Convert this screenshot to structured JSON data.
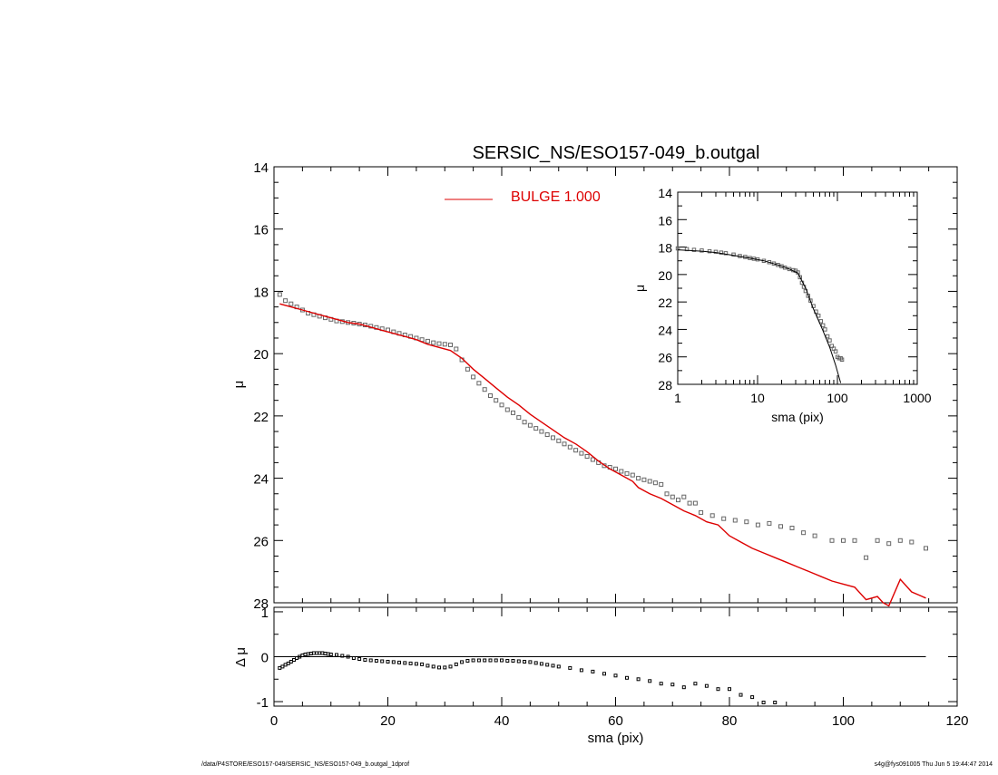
{
  "footer": {
    "left": "/data/P4STORE/ESO157-049/SERSIC_NS/ESO157-049_b.outgal_1dprof",
    "right": "s4g@fys091005  Thu Jun  5 19:44:47 2014"
  },
  "colors": {
    "model": "#dd0000",
    "data": "#666666",
    "axis": "#000000"
  },
  "chart_data": [
    {
      "id": "main",
      "type": "scatter",
      "title": "SERSIC_NS/ESO157-049_b.outgal",
      "xlabel": "",
      "ylabel": "μ",
      "xlim": [
        0,
        120
      ],
      "ylim": [
        28,
        14
      ],
      "yinverted": true,
      "xticks": [
        0,
        20,
        40,
        60,
        80,
        100,
        120
      ],
      "yticks": [
        14,
        16,
        18,
        20,
        22,
        24,
        26,
        28
      ],
      "legend": {
        "label": "BULGE  1.000",
        "placement": "top-center"
      },
      "series": [
        {
          "name": "BULGE  1.000",
          "kind": "line",
          "color": "#dd0000",
          "x": [
            1,
            3,
            5,
            7,
            9,
            11,
            13,
            15,
            17,
            19,
            21,
            23,
            25,
            27,
            29,
            31,
            33,
            35,
            37,
            39,
            41,
            43,
            45,
            47,
            49,
            51,
            53,
            55,
            57,
            59,
            61,
            63,
            64,
            66,
            68,
            70,
            72,
            74,
            76,
            78,
            80,
            82,
            84,
            86,
            88,
            90,
            92,
            94,
            96,
            98,
            100,
            102,
            104,
            106,
            107,
            108,
            110,
            112,
            114.5
          ],
          "y": [
            18.4,
            18.5,
            18.6,
            18.7,
            18.8,
            18.9,
            19.0,
            19.05,
            19.15,
            19.25,
            19.35,
            19.45,
            19.55,
            19.7,
            19.8,
            19.9,
            20.15,
            20.5,
            20.8,
            21.1,
            21.4,
            21.65,
            21.95,
            22.2,
            22.45,
            22.7,
            22.9,
            23.15,
            23.45,
            23.7,
            23.9,
            24.1,
            24.3,
            24.5,
            24.65,
            24.85,
            25.05,
            25.2,
            25.4,
            25.5,
            25.85,
            26.05,
            26.25,
            26.4,
            26.55,
            26.7,
            26.85,
            27.0,
            27.15,
            27.3,
            27.4,
            27.5,
            27.9,
            27.8,
            28.0,
            28.1,
            27.25,
            27.65,
            27.85
          ]
        },
        {
          "name": "",
          "kind": "points",
          "color": "#666666",
          "x": [
            1,
            2,
            3,
            4,
            5,
            6,
            7,
            8,
            9,
            10,
            11,
            12,
            13,
            14,
            15,
            16,
            17,
            18,
            19,
            20,
            21,
            22,
            23,
            24,
            25,
            26,
            27,
            28,
            29,
            30,
            31,
            32,
            33,
            34,
            35,
            36,
            37,
            38,
            39,
            40,
            41,
            42,
            43,
            44,
            45,
            46,
            47,
            48,
            49,
            50,
            51,
            52,
            53,
            54,
            55,
            56,
            57,
            58,
            59,
            60,
            61,
            62,
            63,
            64,
            65,
            66,
            67,
            68,
            69,
            70,
            71,
            72,
            73,
            74,
            75,
            77,
            79,
            81,
            83,
            85,
            87,
            89,
            91,
            93,
            95,
            98,
            100,
            102,
            104,
            106,
            108,
            110,
            112,
            114.5
          ],
          "y": [
            18.1,
            18.3,
            18.4,
            18.5,
            18.6,
            18.7,
            18.75,
            18.8,
            18.85,
            18.9,
            18.95,
            18.97,
            19.0,
            19.02,
            19.05,
            19.08,
            19.12,
            19.16,
            19.2,
            19.24,
            19.3,
            19.35,
            19.4,
            19.45,
            19.5,
            19.55,
            19.6,
            19.65,
            19.68,
            19.7,
            19.72,
            19.85,
            20.2,
            20.5,
            20.75,
            20.95,
            21.15,
            21.35,
            21.5,
            21.65,
            21.8,
            21.9,
            22.05,
            22.2,
            22.3,
            22.4,
            22.5,
            22.6,
            22.7,
            22.8,
            22.9,
            23.0,
            23.1,
            23.2,
            23.3,
            23.4,
            23.5,
            23.6,
            23.65,
            23.7,
            23.78,
            23.85,
            23.9,
            24.0,
            24.05,
            24.1,
            24.15,
            24.2,
            24.5,
            24.6,
            24.7,
            24.6,
            24.8,
            24.8,
            25.1,
            25.2,
            25.3,
            25.35,
            25.4,
            25.5,
            25.45,
            25.55,
            25.6,
            25.75,
            25.85,
            26.0,
            26.0,
            26.0,
            26.55,
            26.0,
            26.1,
            26.0,
            26.05,
            26.25
          ]
        }
      ]
    },
    {
      "id": "inset",
      "type": "scatter",
      "title": "",
      "xlabel": "sma (pix)",
      "ylabel": "μ",
      "xscale": "log",
      "xlim": [
        1,
        1000
      ],
      "ylim": [
        28,
        14
      ],
      "yinverted": true,
      "xticks": [
        1,
        10,
        100,
        1000
      ],
      "yticks": [
        14,
        16,
        18,
        20,
        22,
        24,
        26,
        28
      ],
      "series": [
        {
          "name": "",
          "kind": "line",
          "color": "#000000",
          "x": [
            1,
            2,
            3,
            5,
            8,
            12,
            18,
            25,
            32,
            40,
            50,
            65,
            80,
            95,
            110
          ],
          "y": [
            18.2,
            18.3,
            18.4,
            18.6,
            18.8,
            19.0,
            19.3,
            19.6,
            19.9,
            21.0,
            22.5,
            24.0,
            25.3,
            26.6,
            27.9
          ]
        },
        {
          "name": "",
          "kind": "points",
          "color": "#666666",
          "x": [
            1,
            1.3,
            1.6,
            2,
            2.5,
            3,
            3.5,
            4,
            5,
            6,
            7,
            8,
            9,
            10,
            12,
            14,
            16,
            18,
            20,
            22,
            25,
            28,
            30,
            32,
            34,
            36,
            38,
            40,
            43,
            46,
            50,
            54,
            58,
            62,
            66,
            70,
            75,
            80,
            85,
            90,
            95,
            100,
            105,
            110,
            114
          ],
          "y": [
            18.1,
            18.15,
            18.2,
            18.25,
            18.3,
            18.35,
            18.4,
            18.45,
            18.55,
            18.65,
            18.72,
            18.8,
            18.85,
            18.9,
            19.0,
            19.1,
            19.2,
            19.3,
            19.4,
            19.5,
            19.6,
            19.68,
            19.72,
            19.85,
            20.2,
            20.6,
            20.9,
            21.2,
            21.55,
            21.9,
            22.3,
            22.7,
            23.0,
            23.4,
            23.7,
            24.0,
            24.5,
            24.8,
            25.2,
            25.4,
            25.6,
            26.0,
            26.1,
            26.1,
            26.2
          ]
        }
      ]
    },
    {
      "id": "residual",
      "type": "scatter",
      "title": "",
      "xlabel": "sma (pix)",
      "ylabel": "Δ μ",
      "xlim": [
        0,
        120
      ],
      "ylim": [
        -1.1,
        1.1
      ],
      "xticks": [
        0,
        20,
        40,
        60,
        80,
        100,
        120
      ],
      "yticks": [
        -1,
        0,
        1
      ],
      "zero_line": {
        "y": 0,
        "x_from": 1,
        "x_to": 114.5
      },
      "series": [
        {
          "name": "",
          "kind": "points",
          "color": "#000000",
          "x": [
            1,
            1.5,
            2,
            2.5,
            3,
            3.5,
            4,
            4.5,
            5,
            5.5,
            6,
            6.5,
            7,
            7.5,
            8,
            8.5,
            9,
            9.5,
            10,
            11,
            12,
            13,
            14,
            15,
            16,
            17,
            18,
            19,
            20,
            21,
            22,
            23,
            24,
            25,
            26,
            27,
            28,
            29,
            30,
            31,
            32,
            33,
            34,
            35,
            36,
            37,
            38,
            39,
            40,
            41,
            42,
            43,
            44,
            45,
            46,
            47,
            48,
            49,
            50,
            52,
            54,
            56,
            58,
            60,
            62,
            64,
            66,
            68,
            70,
            72,
            74,
            76,
            78,
            80,
            82,
            84,
            86,
            88
          ],
          "y": [
            -0.25,
            -0.22,
            -0.18,
            -0.15,
            -0.11,
            -0.07,
            -0.03,
            0.0,
            0.03,
            0.05,
            0.06,
            0.07,
            0.08,
            0.08,
            0.08,
            0.08,
            0.07,
            0.06,
            0.05,
            0.04,
            0.02,
            0.0,
            -0.03,
            -0.05,
            -0.07,
            -0.08,
            -0.09,
            -0.1,
            -0.11,
            -0.12,
            -0.13,
            -0.14,
            -0.15,
            -0.16,
            -0.17,
            -0.2,
            -0.22,
            -0.24,
            -0.24,
            -0.22,
            -0.17,
            -0.12,
            -0.09,
            -0.08,
            -0.08,
            -0.08,
            -0.08,
            -0.08,
            -0.08,
            -0.09,
            -0.09,
            -0.1,
            -0.11,
            -0.12,
            -0.14,
            -0.16,
            -0.18,
            -0.2,
            -0.22,
            -0.25,
            -0.3,
            -0.33,
            -0.38,
            -0.42,
            -0.47,
            -0.5,
            -0.54,
            -0.6,
            -0.62,
            -0.68,
            -0.6,
            -0.65,
            -0.72,
            -0.72,
            -0.85,
            -0.9,
            -1.02,
            -1.02
          ]
        }
      ]
    }
  ]
}
